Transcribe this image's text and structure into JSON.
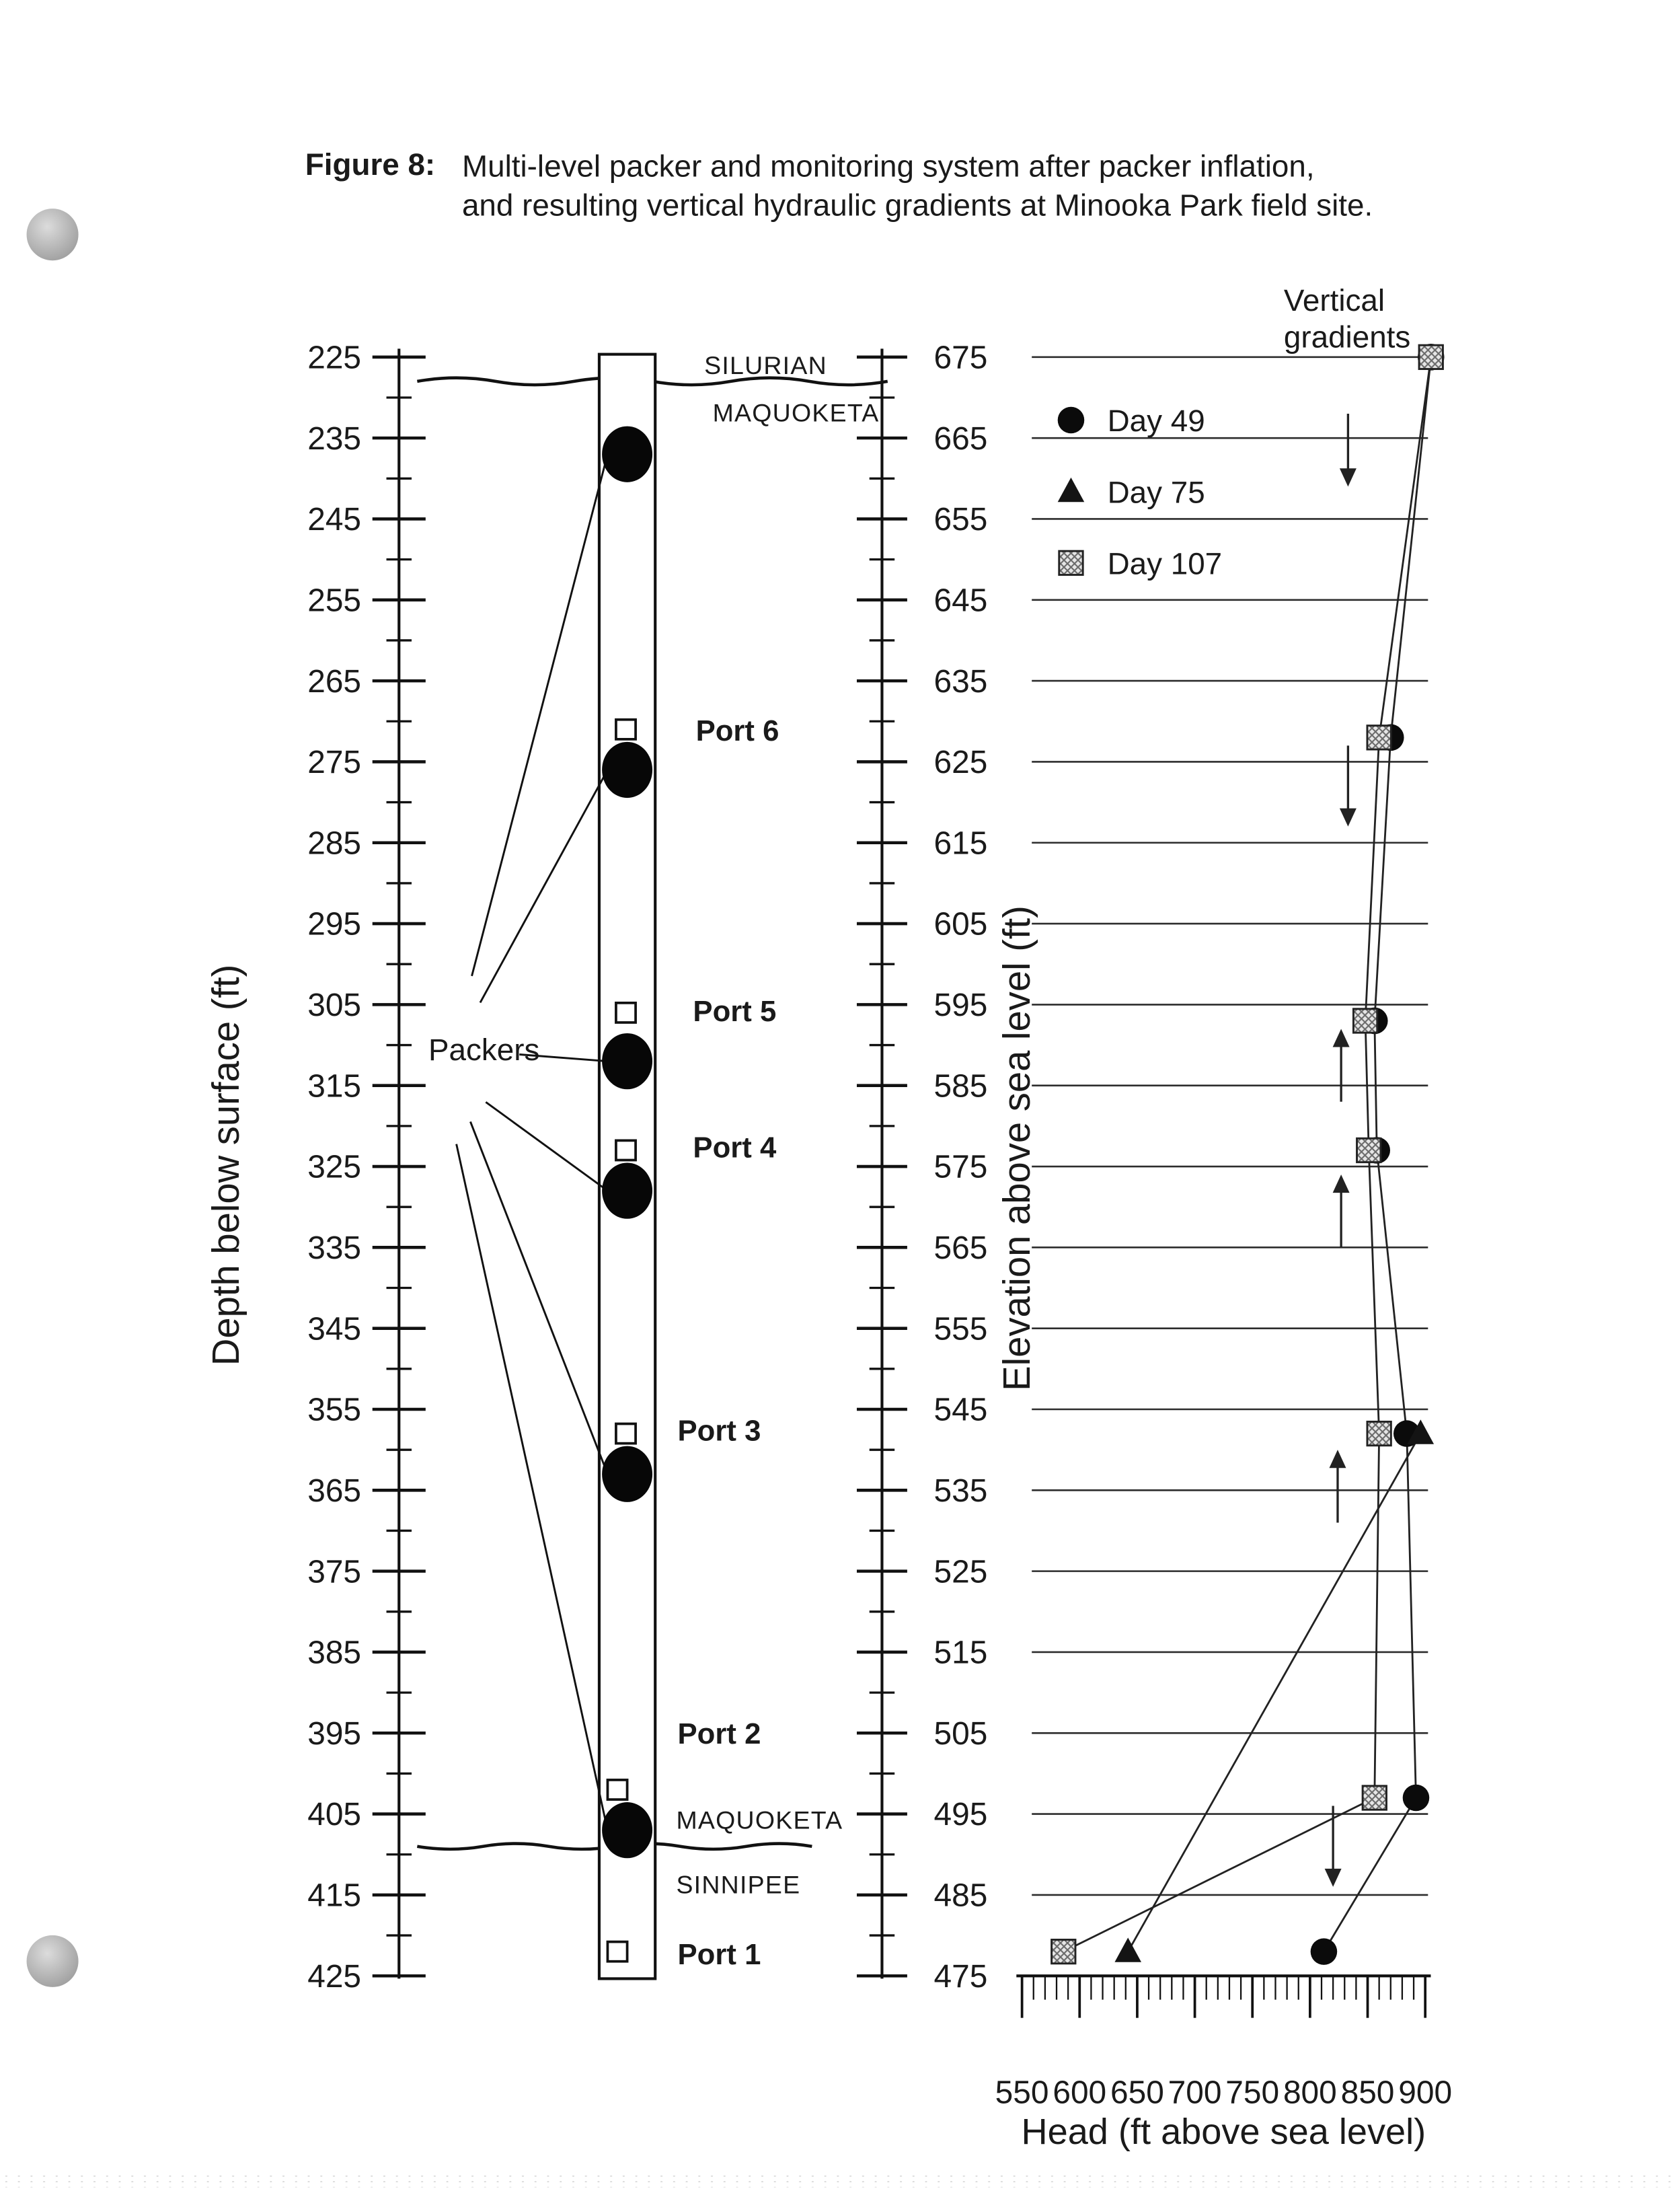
{
  "figure": {
    "label": "Figure 8:",
    "caption_line1": "Multi-level packer and monitoring system after packer inflation,",
    "caption_line2": "and resulting vertical hydraulic gradients at Minooka Park field site."
  },
  "well": {
    "depth_axis_title": "Depth below surface (ft)",
    "depth_ticks": [
      225,
      235,
      245,
      255,
      265,
      275,
      285,
      295,
      305,
      315,
      325,
      335,
      345,
      355,
      365,
      375,
      385,
      395,
      405,
      415,
      425
    ],
    "packers_label": "Packers",
    "packer_depths_ft": [
      237,
      276,
      312,
      328,
      363,
      407
    ],
    "ports": [
      {
        "label": "Port 6",
        "depth_ft": 271
      },
      {
        "label": "Port 5",
        "depth_ft": 306
      },
      {
        "label": "Port 4",
        "depth_ft": 323
      },
      {
        "label": "Port 3",
        "depth_ft": 358
      },
      {
        "label": "Port 2",
        "depth_ft": 402
      },
      {
        "label": "Port 1",
        "depth_ft": 422
      }
    ],
    "stratigraphy": {
      "top_contact": {
        "above": "SILURIAN",
        "below": "MAQUOKETA",
        "depth_ft": 228
      },
      "bottom_contact": {
        "above": "MAQUOKETA",
        "below": "SINNIPEE",
        "depth_ft": 409
      }
    }
  },
  "elevation_axis": {
    "title": "Elevation above sea level (ft)",
    "ticks": [
      675,
      665,
      655,
      645,
      635,
      625,
      615,
      605,
      595,
      585,
      575,
      565,
      555,
      545,
      535,
      525,
      515,
      505,
      495,
      485,
      475
    ]
  },
  "chart_data": {
    "type": "scatter",
    "title": "Vertical gradients",
    "xlabel": "Head (ft above sea level)",
    "ylabel": "Elevation above sea level (ft)",
    "xlim": [
      550,
      900
    ],
    "ylim": [
      475,
      675
    ],
    "x_ticks": [
      550,
      600,
      650,
      700,
      750,
      800,
      850,
      900
    ],
    "grid_elevations": [
      675,
      665,
      655,
      645,
      635,
      625,
      615,
      605,
      595,
      585,
      575,
      565,
      555,
      545,
      535,
      525,
      515,
      505,
      495,
      485
    ],
    "legend": [
      {
        "label": "Day 49",
        "marker": "circle"
      },
      {
        "label": "Day 75",
        "marker": "triangle"
      },
      {
        "label": "Day 107",
        "marker": "square"
      }
    ],
    "series": [
      {
        "name": "Day 49",
        "marker": "circle",
        "points": [
          [
            905,
            675
          ],
          [
            870,
            628
          ],
          [
            856,
            593
          ],
          [
            858,
            577
          ],
          [
            884,
            542
          ],
          [
            892,
            497
          ],
          [
            812,
            478
          ]
        ]
      },
      {
        "name": "Day 75",
        "marker": "triangle",
        "points": [
          [
            896,
            542
          ],
          [
            642,
            478
          ]
        ]
      },
      {
        "name": "Day 107",
        "marker": "square",
        "points": [
          [
            905,
            675
          ],
          [
            860,
            628
          ],
          [
            848,
            593
          ],
          [
            851,
            577
          ],
          [
            860,
            542
          ],
          [
            856,
            497
          ],
          [
            586,
            478
          ]
        ]
      }
    ],
    "gradient_arrows": [
      {
        "head": 833,
        "from_elev": 668,
        "to_elev": 659
      },
      {
        "head": 833,
        "from_elev": 627,
        "to_elev": 617
      },
      {
        "head": 827,
        "from_elev": 583,
        "to_elev": 592
      },
      {
        "head": 827,
        "from_elev": 565,
        "to_elev": 574
      },
      {
        "head": 824,
        "from_elev": 531,
        "to_elev": 540
      },
      {
        "head": 820,
        "from_elev": 496,
        "to_elev": 486
      }
    ]
  }
}
